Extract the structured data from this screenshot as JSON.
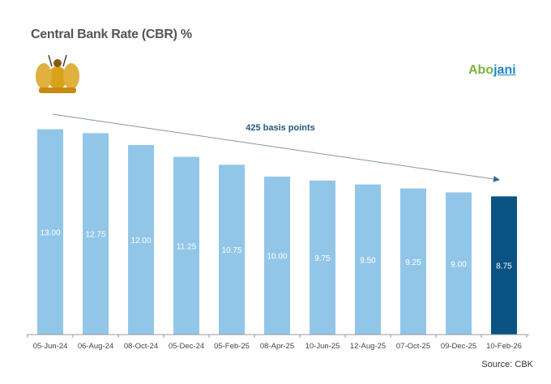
{
  "chart_data": {
    "type": "bar",
    "title": "Central Bank Rate (CBR) %",
    "categories": [
      "05-Jun-24",
      "06-Aug-24",
      "08-Oct-24",
      "05-Dec-24",
      "05-Feb-25",
      "08-Apr-25",
      "10-Jun-25",
      "12-Aug-25",
      "07-Oct-25",
      "09-Dec-25",
      "10-Feb-26"
    ],
    "values": [
      13.0,
      12.75,
      12.0,
      11.25,
      10.75,
      10.0,
      9.75,
      9.5,
      9.25,
      9.0,
      8.75
    ],
    "data_labels": [
      "13.00",
      "12.75",
      "12.00",
      "11.25",
      "10.75",
      "10.00",
      "9.75",
      "9.50",
      "9.25",
      "9.00",
      "8.75"
    ],
    "ylim": [
      0,
      13
    ],
    "grid": false,
    "bar_color": "#92c6e8",
    "highlight_color": "#0b5384",
    "highlight_index": 10,
    "annotation": "425 basis points",
    "annotation_color": "#1f5a7a"
  },
  "logo_text": {
    "a": "Abo",
    "b": "jani"
  },
  "source": "Source: CBK"
}
